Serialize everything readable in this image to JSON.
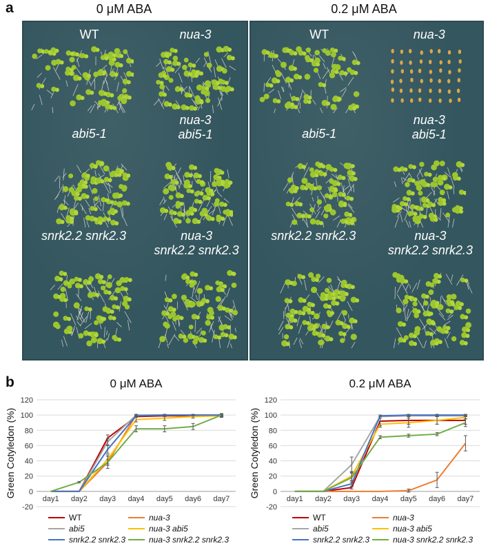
{
  "panel_a": {
    "letter": "a",
    "conditions": [
      {
        "title": "0 μM ABA",
        "genotypes": [
          {
            "label_lines": [
              "WT"
            ]
          },
          {
            "label_lines": [
              "nua-3"
            ]
          },
          {
            "label_lines": [
              "abi5-1"
            ]
          },
          {
            "label_lines": [
              "nua-3",
              "abi5-1"
            ]
          },
          {
            "label_lines": [
              "snrk2.2 snrk2.3"
            ]
          },
          {
            "label_lines": [
              "nua-3",
              "snrk2.2 snrk2.3"
            ]
          }
        ]
      },
      {
        "title": "0.2 μM ABA",
        "genotypes": [
          {
            "label_lines": [
              "WT"
            ]
          },
          {
            "label_lines": [
              "nua-3"
            ]
          },
          {
            "label_lines": [
              "abi5-1"
            ]
          },
          {
            "label_lines": [
              "nua-3",
              "abi5-1"
            ]
          },
          {
            "label_lines": [
              "snrk2.2 snrk2.3"
            ]
          },
          {
            "label_lines": [
              "nua-3",
              "snrk2.2 snrk2.3"
            ]
          }
        ]
      }
    ],
    "colors": {
      "plate": "#34565e",
      "cotyledon": "#9cc62e",
      "root": "#d9d8cf",
      "seed": "#d9a84a"
    }
  },
  "panel_b": {
    "letter": "b"
  },
  "chart_data": [
    {
      "type": "line",
      "title": "0 μM ABA",
      "ylabel": "Green Cotyledon (%)",
      "xlabel": "",
      "categories": [
        "day1",
        "day2",
        "day3",
        "day4",
        "day5",
        "day6",
        "day7"
      ],
      "ylim": [
        -20,
        120
      ],
      "yticks": [
        -20,
        0,
        20,
        40,
        60,
        80,
        100,
        120
      ],
      "grid": true,
      "legend_position": "bottom",
      "series": [
        {
          "name": "WT",
          "color": "#c00000",
          "values": [
            0,
            0,
            70,
            98,
            99,
            99,
            99
          ],
          "errors": [
            0,
            0,
            4,
            1,
            1,
            1,
            1
          ]
        },
        {
          "name": "nua-3",
          "color": "#ed7d31",
          "values": [
            0,
            0,
            38,
            100,
            100,
            100,
            100
          ],
          "errors": [
            0,
            0,
            4,
            1,
            1,
            1,
            1
          ]
        },
        {
          "name": "abi5",
          "color": "#a5a5a5",
          "values": [
            0,
            0,
            65,
            100,
            100,
            100,
            100
          ],
          "errors": [
            0,
            0,
            4,
            1,
            1,
            1,
            1
          ]
        },
        {
          "name": "nua-3 abi5",
          "color": "#ffc000",
          "values": [
            0,
            0,
            42,
            94,
            96,
            98,
            99
          ],
          "errors": [
            0,
            0,
            6,
            3,
            3,
            2,
            2
          ]
        },
        {
          "name": "snrk2.2 snrk2.3",
          "color": "#4472c4",
          "values": [
            0,
            0,
            55,
            99,
            100,
            100,
            100
          ],
          "errors": [
            0,
            0,
            5,
            1,
            1,
            1,
            1
          ]
        },
        {
          "name": "nua-3 snrk2.2 snrk2.3",
          "color": "#70ad47",
          "values": [
            0,
            12,
            38,
            82,
            82,
            85,
            100
          ],
          "errors": [
            0,
            1,
            8,
            4,
            4,
            4,
            2
          ]
        }
      ]
    },
    {
      "type": "line",
      "title": "0.2 μM ABA",
      "ylabel": "Green Cotyledon (%)",
      "xlabel": "",
      "categories": [
        "day1",
        "day2",
        "day3",
        "day4",
        "day5",
        "day6",
        "day7"
      ],
      "ylim": [
        -20,
        120
      ],
      "yticks": [
        -20,
        0,
        20,
        40,
        60,
        80,
        100,
        120
      ],
      "grid": true,
      "legend_position": "bottom",
      "series": [
        {
          "name": "WT",
          "color": "#c00000",
          "values": [
            0,
            0,
            5,
            92,
            93,
            93,
            93
          ],
          "errors": [
            0,
            0,
            2,
            6,
            5,
            5,
            5
          ]
        },
        {
          "name": "nua-3",
          "color": "#ed7d31",
          "values": [
            0,
            0,
            0,
            0,
            1,
            15,
            63
          ],
          "errors": [
            0,
            0,
            0,
            0,
            2,
            10,
            10
          ]
        },
        {
          "name": "abi5",
          "color": "#a5a5a5",
          "values": [
            0,
            0,
            35,
            98,
            99,
            99,
            99
          ],
          "errors": [
            0,
            0,
            10,
            2,
            1,
            1,
            1
          ]
        },
        {
          "name": "nua-3 abi5",
          "color": "#ffc000",
          "values": [
            0,
            0,
            20,
            88,
            90,
            93,
            97
          ],
          "errors": [
            0,
            0,
            6,
            4,
            6,
            5,
            2
          ]
        },
        {
          "name": "snrk2.2 snrk2.3",
          "color": "#4472c4",
          "values": [
            0,
            0,
            10,
            99,
            100,
            100,
            100
          ],
          "errors": [
            0,
            0,
            4,
            1,
            1,
            1,
            1
          ]
        },
        {
          "name": "nua-3 snrk2.2 snrk2.3",
          "color": "#70ad47",
          "values": [
            0,
            0,
            18,
            71,
            73,
            75,
            90
          ],
          "errors": [
            0,
            0,
            6,
            2,
            2,
            2,
            5
          ]
        }
      ]
    }
  ]
}
